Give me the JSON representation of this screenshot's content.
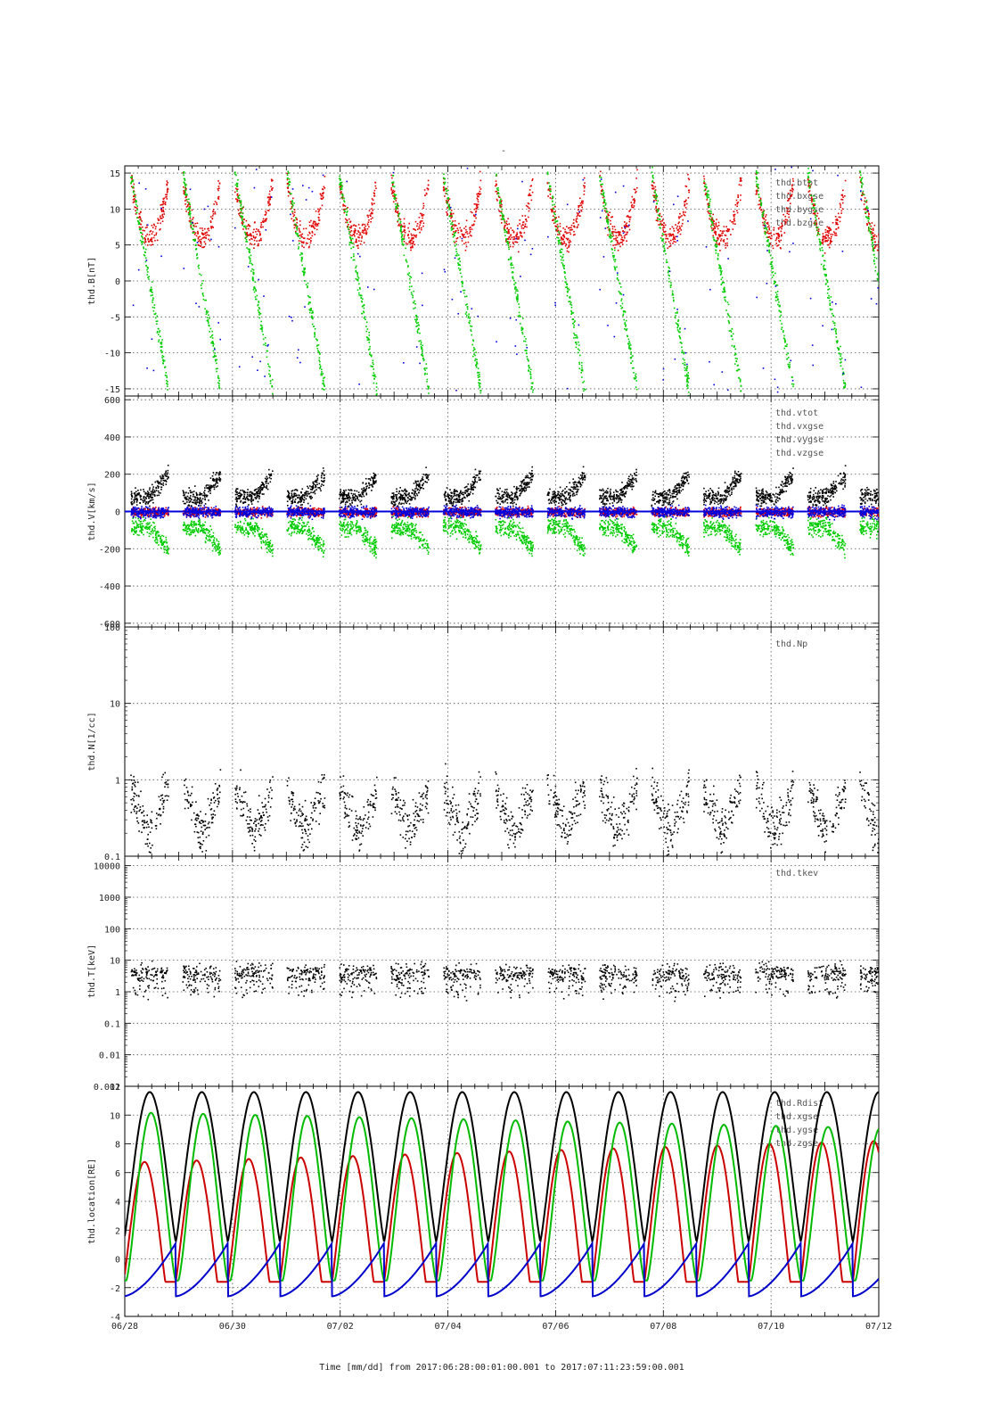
{
  "figure": {
    "title": "-",
    "footer": "Time [mm/dd]  from 2017:06:28:00:01:00.001  to  2017:07:11:23:59:00.001"
  },
  "chart_data": {
    "type": "scatter",
    "x_axis": {
      "label": "Time [mm/dd]",
      "range_days": [
        0,
        14
      ],
      "ticks": [
        {
          "day": 0,
          "label": "06/28"
        },
        {
          "day": 2,
          "label": "06/30"
        },
        {
          "day": 4,
          "label": "07/02"
        },
        {
          "day": 6,
          "label": "07/04"
        },
        {
          "day": 8,
          "label": "07/06"
        },
        {
          "day": 10,
          "label": "07/08"
        },
        {
          "day": 12,
          "label": "07/10"
        },
        {
          "day": 14,
          "label": "07/12"
        }
      ]
    },
    "panels": [
      {
        "id": "B",
        "ylabel": "thd.B[nT]",
        "scale": "linear",
        "ylim": [
          -16,
          16
        ],
        "yticks": [
          15,
          10,
          5,
          0,
          -5,
          -10,
          -15
        ],
        "series": [
          {
            "name": "thd.btot",
            "color": "#000000"
          },
          {
            "name": "thd.bxgse",
            "color": "#e00000"
          },
          {
            "name": "thd.bygse",
            "color": "#00cc00"
          },
          {
            "name": "thd.bzgse",
            "color": "#0000dd"
          }
        ]
      },
      {
        "id": "V",
        "ylabel": "thd.V[km/s]",
        "scale": "linear",
        "ylim": [
          -620,
          620
        ],
        "yticks": [
          600,
          400,
          200,
          0,
          -200,
          -400,
          -600
        ],
        "series": [
          {
            "name": "thd.vtot",
            "color": "#000000"
          },
          {
            "name": "thd.vxgse",
            "color": "#e00000"
          },
          {
            "name": "thd.vygse",
            "color": "#00cc00"
          },
          {
            "name": "thd.vzgse",
            "color": "#0000dd"
          }
        ]
      },
      {
        "id": "N",
        "ylabel": "thd.N[1/cc]",
        "scale": "log",
        "ylim": [
          0.1,
          100
        ],
        "yticks": [
          100,
          10,
          1,
          0.1
        ],
        "ytick_labels": [
          "100",
          "10",
          "1",
          "0.1"
        ],
        "series": [
          {
            "name": "thd.Np",
            "color": "#000000"
          }
        ]
      },
      {
        "id": "T",
        "ylabel": "thd.T[keV]",
        "scale": "log",
        "ylim": [
          0.001,
          20000
        ],
        "yticks": [
          10000,
          1000,
          100,
          10,
          1,
          0.1,
          0.01,
          0.001
        ],
        "ytick_labels": [
          "10000",
          "1000",
          "100",
          "10",
          "1",
          "0.1",
          "0.01",
          "0.001"
        ],
        "series": [
          {
            "name": "thd.tkev",
            "color": "#000000"
          }
        ]
      },
      {
        "id": "L",
        "ylabel": "thd.location[RE]",
        "scale": "linear",
        "ylim": [
          -4,
          12
        ],
        "yticks": [
          12,
          10,
          8,
          6,
          4,
          2,
          0,
          -2,
          -4
        ],
        "series": [
          {
            "name": "thd.Rdist",
            "color": "#000000"
          },
          {
            "name": "thd.xgse",
            "color": "#cc0000"
          },
          {
            "name": "thd.ygse",
            "color": "#00bb00"
          },
          {
            "name": "thd.zgse",
            "color": "#0000cc"
          }
        ],
        "orbit": {
          "period_days": 0.967,
          "first_perigee_day": -0.02,
          "rdist_apogee": 11.6,
          "rdist_perigee": 1.2,
          "xgse_max": [
            6.7,
            8.2
          ],
          "ygse_max": [
            10.2,
            9.1
          ],
          "zgse_range": [
            -2.6,
            1.1
          ]
        }
      }
    ]
  }
}
